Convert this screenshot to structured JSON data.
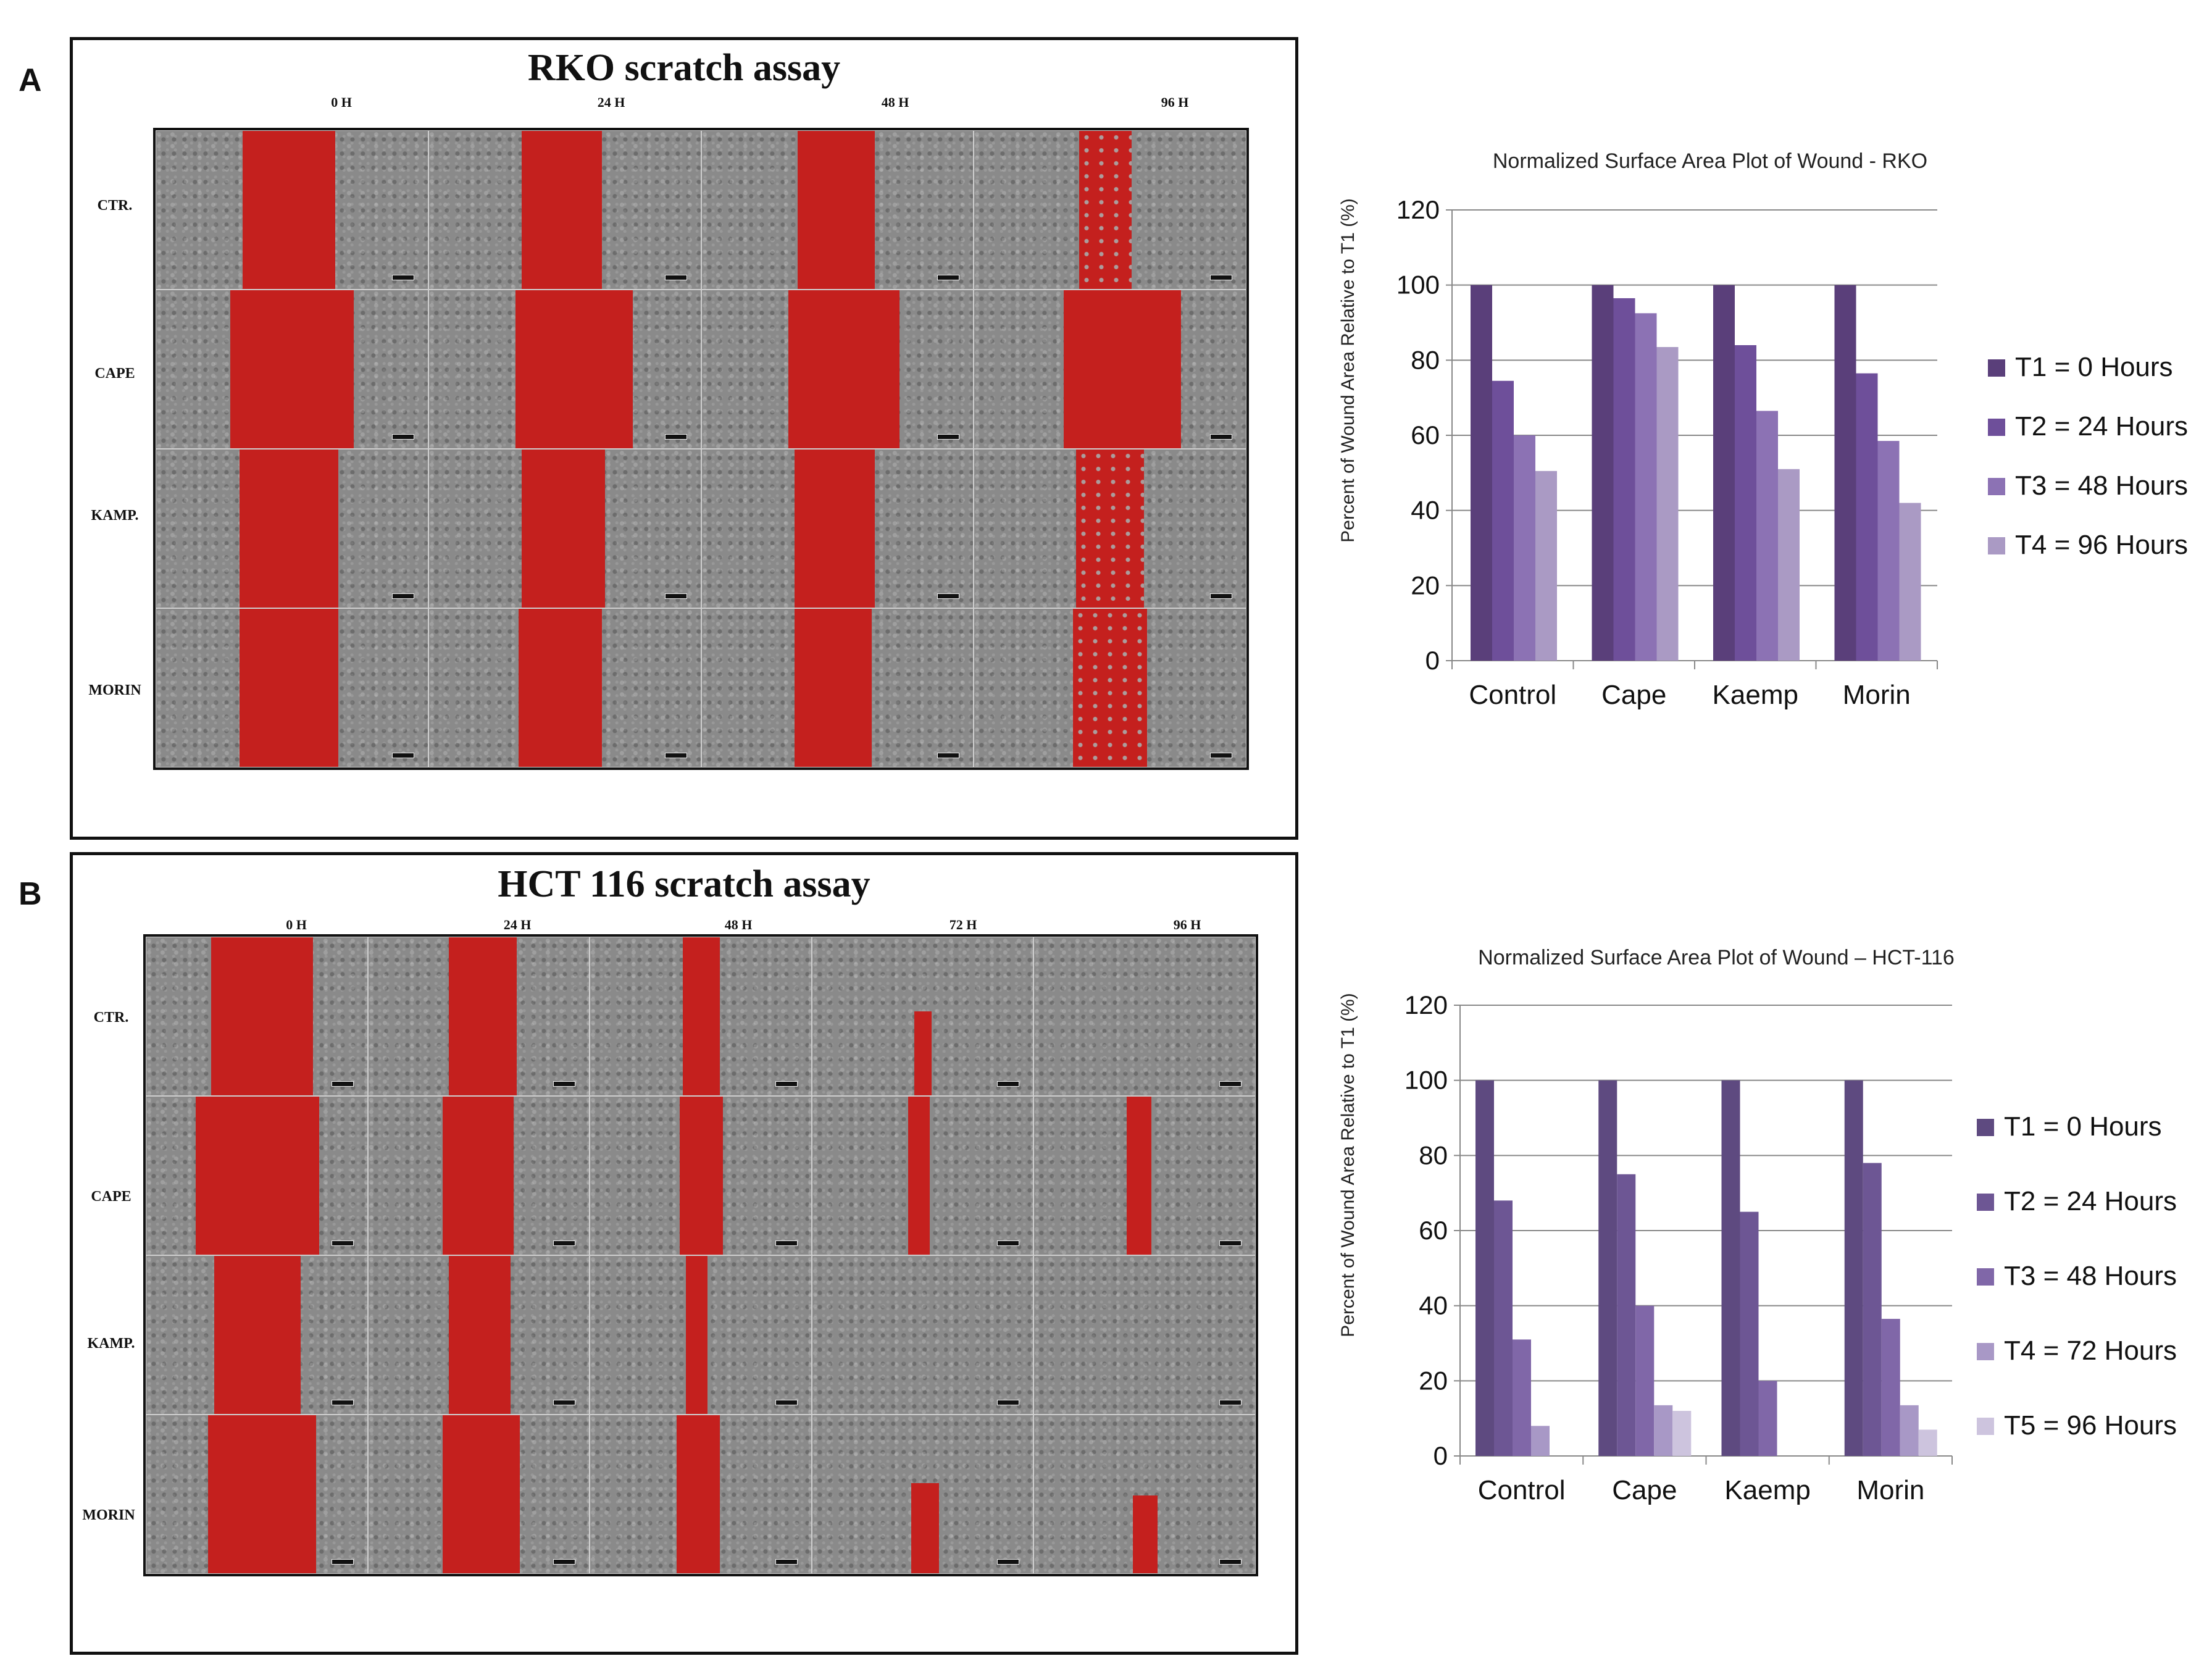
{
  "panels": [
    {
      "letter": "A",
      "assay_title": "RKO scratch assay",
      "columns": [
        "0 H",
        "24 H",
        "48 H",
        "96 H"
      ],
      "rows": [
        "CTR.",
        "CAPE",
        "KAMP.",
        "MORIN"
      ]
    },
    {
      "letter": "B",
      "assay_title": "HCT 116 scratch assay",
      "columns": [
        "0 H",
        "24 H",
        "48 H",
        "72 H",
        "96 H"
      ],
      "rows": [
        "CTR.",
        "CAPE",
        "KAMP.",
        "MORIN"
      ]
    }
  ],
  "chart_data": [
    {
      "type": "bar",
      "title": "Normalized Surface Area Plot  of Wound - RKO",
      "xlabel": "",
      "ylabel": "Percent of Wound Area Relative to T1 (%)",
      "ylim": [
        0,
        120
      ],
      "yticks": [
        0,
        20,
        40,
        60,
        80,
        100,
        120
      ],
      "categories": [
        "Control",
        "Cape",
        "Kaemp",
        "Morin"
      ],
      "legend_position": "right",
      "series": [
        {
          "name": "T1 = 0 Hours",
          "color": "#5a3f7a",
          "values": [
            100,
            100,
            100,
            100
          ]
        },
        {
          "name": "T2 = 24 Hours",
          "color": "#6e4f9a",
          "values": [
            74.5,
            96.5,
            84,
            76.5
          ]
        },
        {
          "name": "T3 = 48 Hours",
          "color": "#8c72b4",
          "values": [
            60,
            92.5,
            66.5,
            58.5
          ]
        },
        {
          "name": "T4 = 96 Hours",
          "color": "#aa9ac4",
          "values": [
            50.5,
            83.5,
            51,
            42
          ]
        }
      ]
    },
    {
      "type": "bar",
      "title": "Normalized Surface Area Plot  of Wound – HCT-116",
      "xlabel": "",
      "ylabel": "Percent of Wound Area Relative to T1 (%)",
      "ylim": [
        0,
        120
      ],
      "yticks": [
        0,
        20,
        40,
        60,
        80,
        100,
        120
      ],
      "categories": [
        "Control",
        "Cape",
        "Kaemp",
        "Morin"
      ],
      "legend_position": "right",
      "series": [
        {
          "name": "T1 = 0 Hours",
          "color": "#5e4a80",
          "values": [
            100,
            100,
            100,
            100
          ]
        },
        {
          "name": "T2 = 24 Hours",
          "color": "#6d5694",
          "values": [
            68,
            75,
            65,
            78
          ]
        },
        {
          "name": "T3 = 48 Hours",
          "color": "#8067a8",
          "values": [
            31,
            40,
            20,
            36.5
          ]
        },
        {
          "name": "T4 = 72 Hours",
          "color": "#a898c6",
          "values": [
            8,
            13.5,
            0,
            13.5
          ]
        },
        {
          "name": "T5 = 96 Hours",
          "color": "#cdc4de",
          "values": [
            0,
            12,
            0,
            7
          ]
        }
      ]
    }
  ]
}
